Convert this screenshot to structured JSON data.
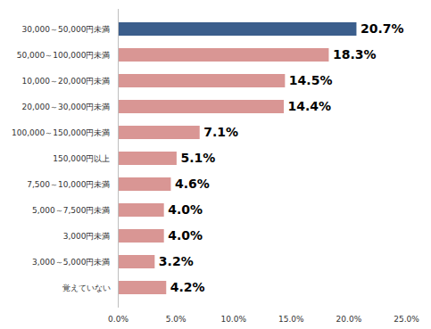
{
  "chart_data": {
    "type": "bar",
    "orientation": "horizontal",
    "categories": [
      "30,000～50,000円未満",
      "50,000～100,000円未満",
      "10,000～20,000円未満",
      "20,000～30,000円未満",
      "100,000～150,000円未満",
      "150,000円以上",
      "7,500～10,000円未満",
      "5,000～7,500円未満",
      "3,000円未満",
      "3,000～5,000円未満",
      "覚えていない"
    ],
    "values": [
      20.7,
      18.3,
      14.5,
      14.4,
      7.1,
      5.1,
      4.6,
      4.0,
      4.0,
      3.2,
      4.2
    ],
    "value_labels": [
      "20.7%",
      "18.3%",
      "14.5%",
      "14.4%",
      "7.1%",
      "5.1%",
      "4.6%",
      "4.0%",
      "4.0%",
      "3.2%",
      "4.2%"
    ],
    "data_labels": true,
    "colors": [
      "#3b5e8c",
      "#d99694",
      "#d99694",
      "#d99694",
      "#d99694",
      "#d99694",
      "#d99694",
      "#d99694",
      "#d99694",
      "#d99694",
      "#d99694"
    ],
    "xlim": [
      0,
      25
    ],
    "xticks": [
      {
        "value": 0,
        "label": "0.0%"
      },
      {
        "value": 5,
        "label": "5.0%"
      },
      {
        "value": 10,
        "label": "10.0%"
      },
      {
        "value": 15,
        "label": "15.0%"
      },
      {
        "value": 20,
        "label": "20.0%"
      },
      {
        "value": 25,
        "label": "25.0%"
      }
    ],
    "grid": false
  }
}
